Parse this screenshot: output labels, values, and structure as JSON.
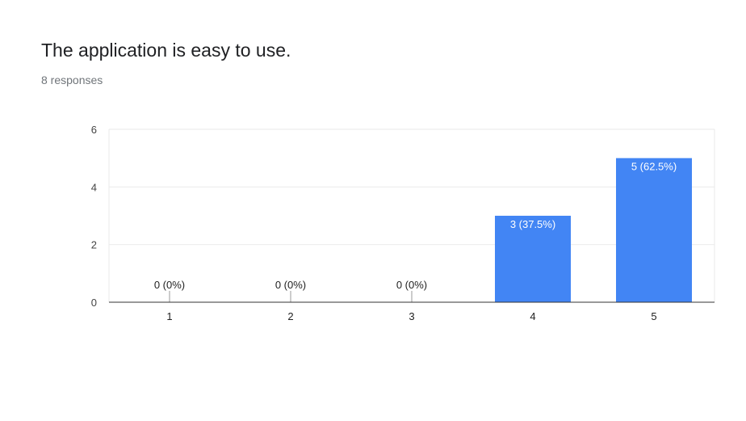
{
  "question": {
    "title": "The application is easy to use.",
    "responses": "8 responses"
  },
  "chart_data": {
    "type": "bar",
    "categories": [
      "1",
      "2",
      "3",
      "4",
      "5"
    ],
    "values": [
      0,
      0,
      0,
      3,
      5
    ],
    "data_labels": [
      "0 (0%)",
      "0 (0%)",
      "0 (0%)",
      "3 (37.5%)",
      "5 (62.5%)"
    ],
    "yticks": [
      "0",
      "2",
      "4",
      "6"
    ],
    "ylim": [
      0,
      6
    ],
    "grid": true,
    "title": "",
    "xlabel": "",
    "ylabel": "",
    "bar_color": "#4285f4"
  }
}
